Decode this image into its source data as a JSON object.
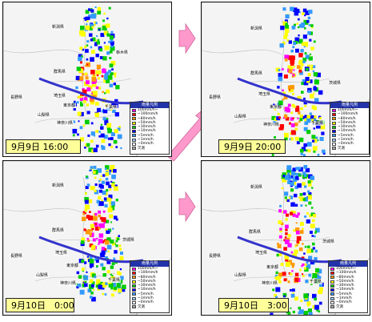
{
  "panels": [
    {
      "time": "9月9日 16:00",
      "places": {
        "niigata": "新潟県",
        "gunma": "群馬県",
        "tochigi": "栃木県",
        "nagano": "長野県",
        "saitama": "埼玉県",
        "tokyo": "東京都",
        "yamanashi": "山梨県",
        "kanagawa": "神奈川県",
        "chiba": "千葉県"
      }
    },
    {
      "time": "9月9日 20:00",
      "places": {
        "niigata": "新潟県",
        "gunma": "群馬県",
        "ibaraki": "茨城県",
        "nagano": "長野県",
        "saitama": "埼玉県",
        "tokyo": "東京都",
        "yamanashi": "山梨県",
        "kanagawa": "神奈川県",
        "chiba": "千葉県"
      }
    },
    {
      "time": "9月10日　0:00",
      "places": {
        "niigata": "新潟県",
        "gunma": "群馬県",
        "ibaraki": "茨城県",
        "nagano": "長野県",
        "saitama": "埼玉県",
        "tokyo": "東京都",
        "yamanashi": "山梨県",
        "kanagawa": "神奈川県",
        "chiba": "千葉県"
      }
    },
    {
      "time": "9月10日　3:00",
      "places": {
        "niigata": "新潟県",
        "gunma": "群馬県",
        "ibaraki": "茨城県",
        "nagano": "長野県",
        "saitama": "埼玉県",
        "tokyo": "東京都",
        "yamanashi": "山梨県",
        "kanagawa": "神奈川県",
        "chiba": "千葉県"
      }
    }
  ],
  "legend": {
    "title": "雨量凡例",
    "items": [
      {
        "label": "100mm/h~",
        "color": "#ff00ff"
      },
      {
        "label": "~100mm/h",
        "color": "#ff0000"
      },
      {
        "label": "~80mm/h",
        "color": "#ff9900"
      },
      {
        "label": "~50mm/h",
        "color": "#ffff00"
      },
      {
        "label": "~30mm/h",
        "color": "#00cc00"
      },
      {
        "label": "~10mm/h",
        "color": "#0000ff"
      },
      {
        "label": "~5mm/h",
        "color": "#3399ff"
      },
      {
        "label": "~1mm/h",
        "color": "#99ccff"
      },
      {
        "label": "~0mm/h",
        "color": "#ffffff"
      },
      {
        "label": "欠測",
        "color": "#aaaaaa"
      }
    ]
  },
  "colors": {
    "arrow": "#ff99cc",
    "typhoon_track": "#3333cc",
    "time_label_bg": "#ffff99",
    "sea": "#ffffff"
  }
}
